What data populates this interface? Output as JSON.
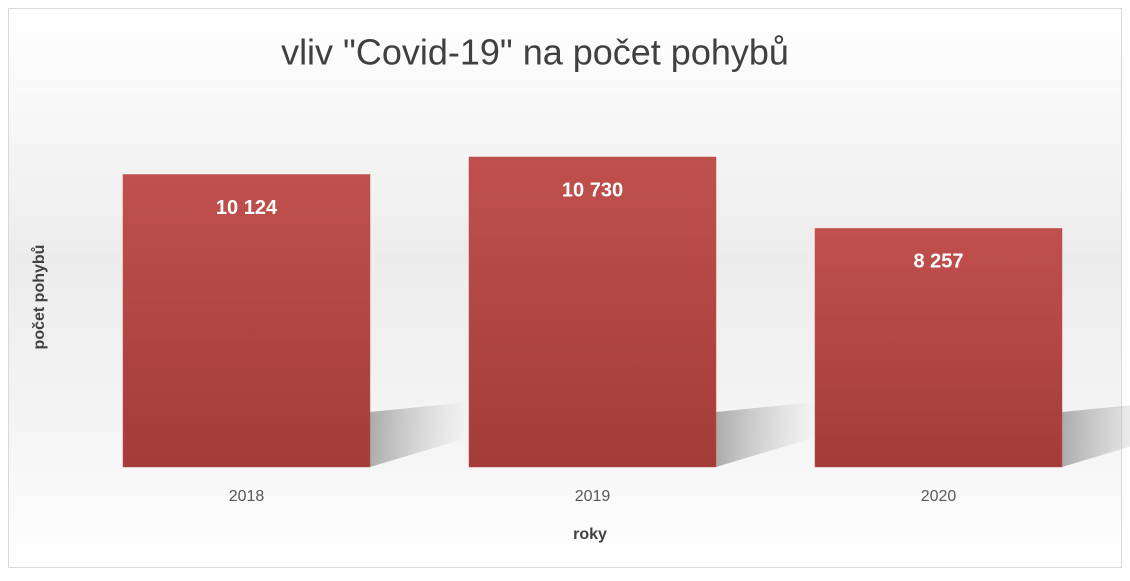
{
  "chart_data": {
    "type": "bar",
    "title": "vliv \"Covid-19\" na počet pohybů",
    "x_label": "roky",
    "y_label": "počet pohybů",
    "categories": [
      "2018",
      "2019",
      "2020"
    ],
    "values": [
      10124,
      10730,
      8257
    ],
    "value_labels": [
      "10 124",
      "10 730",
      "8 257"
    ],
    "color": "#c0504d"
  }
}
